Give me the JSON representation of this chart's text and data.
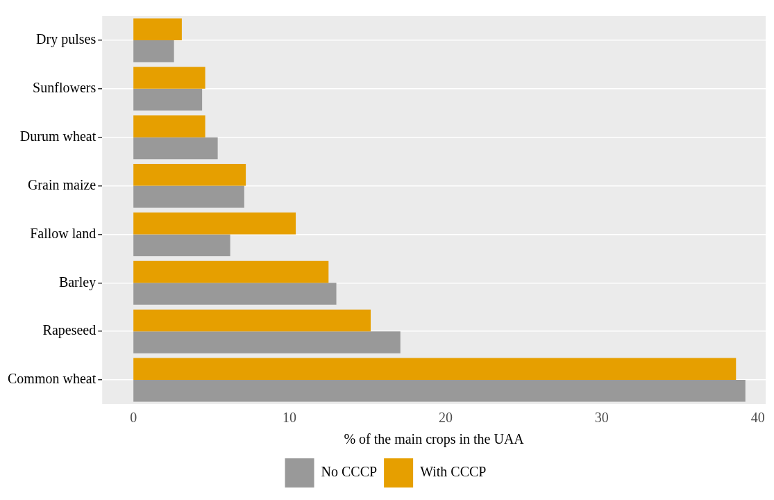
{
  "chart_data": {
    "type": "bar",
    "orientation": "horizontal",
    "xlabel": "% of the main crops in the UAA",
    "categories": [
      "Dry pulses",
      "Sunflowers",
      "Durum wheat",
      "Grain maize",
      "Fallow land",
      "Barley",
      "Rapeseed",
      "Common wheat"
    ],
    "series": [
      {
        "name": "No CCCP",
        "color": "#999999",
        "values": [
          2.6,
          4.4,
          5.4,
          7.1,
          6.2,
          13.0,
          17.1,
          39.2
        ]
      },
      {
        "name": "With CCCP",
        "color": "#e69f00",
        "values": [
          3.1,
          4.6,
          4.6,
          7.2,
          10.4,
          12.5,
          15.2,
          38.6
        ]
      }
    ],
    "xlim": [
      -2,
      40.5
    ],
    "xticks": [
      0,
      10,
      20,
      30,
      40
    ],
    "grid": "y",
    "legend": "bottom"
  }
}
